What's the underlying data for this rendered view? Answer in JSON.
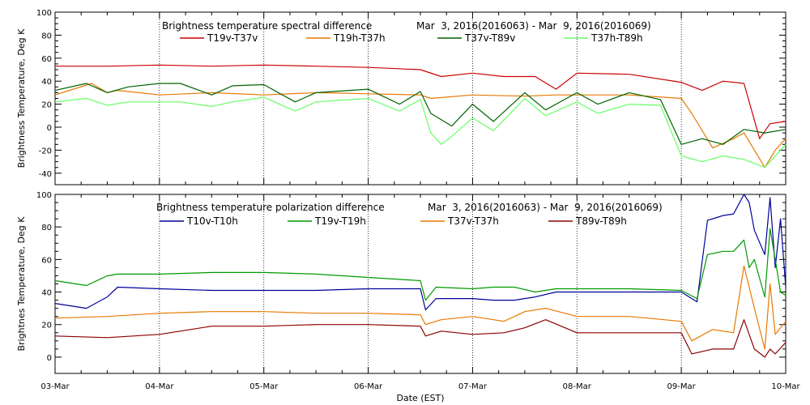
{
  "chart_data": [
    {
      "type": "line",
      "title": "Brightness temperature spectral difference",
      "date_range_text": "Mar  3, 2016(2016063) - Mar  9, 2016(2016069)",
      "ylabel": "Brightness Temperature, Deg K",
      "xlabel": "",
      "ylim": [
        -50,
        100
      ],
      "yticks": [
        -40,
        -20,
        0,
        20,
        40,
        60,
        80,
        100
      ],
      "xlim": [
        0,
        7
      ],
      "grid": "vertical dotted lines at day boundaries",
      "legend_position": "top",
      "series": [
        {
          "name": "T19v-T37v",
          "color": "#cc0000",
          "x": [
            0,
            0.5,
            1,
            1.5,
            2,
            2.5,
            3,
            3.5,
            3.7,
            4,
            4.3,
            4.6,
            4.8,
            5,
            5.5,
            6,
            6.2,
            6.4,
            6.6,
            6.75,
            6.85,
            7
          ],
          "y": [
            53,
            53,
            54,
            53,
            54,
            53,
            52,
            50,
            44,
            47,
            44,
            44,
            33,
            47,
            46,
            39,
            32,
            40,
            38,
            -10,
            3,
            5
          ]
        },
        {
          "name": "T19h-T37h",
          "color": "#e87800",
          "x": [
            0,
            0.35,
            0.5,
            0.6,
            1,
            1.5,
            2,
            2.5,
            3,
            3.5,
            3.6,
            4,
            4.5,
            4.8,
            5,
            5.5,
            6,
            6.1,
            6.3,
            6.5,
            6.6,
            6.8,
            6.9,
            7
          ],
          "y": [
            28,
            38,
            30,
            32,
            28,
            30,
            28,
            30,
            29,
            28,
            25,
            28,
            27,
            28,
            28,
            28,
            25,
            12,
            -18,
            -10,
            -5,
            -35,
            -20,
            -10
          ]
        },
        {
          "name": "T37v-T89v",
          "color": "#006400",
          "x": [
            0,
            0.3,
            0.5,
            0.7,
            1,
            1.2,
            1.5,
            1.7,
            2,
            2.3,
            2.5,
            3,
            3.3,
            3.5,
            3.6,
            3.8,
            4,
            4.2,
            4.5,
            4.7,
            5,
            5.2,
            5.5,
            5.8,
            6,
            6.2,
            6.4,
            6.6,
            6.8,
            7
          ],
          "y": [
            32,
            38,
            30,
            35,
            38,
            38,
            28,
            36,
            37,
            22,
            30,
            33,
            20,
            31,
            12,
            1,
            20,
            5,
            30,
            15,
            30,
            20,
            30,
            24,
            -15,
            -10,
            -15,
            -2,
            -5,
            -2
          ]
        },
        {
          "name": "T37h-T89h",
          "color": "#66ff66",
          "x": [
            0,
            0.3,
            0.5,
            0.7,
            1,
            1.2,
            1.5,
            1.7,
            2,
            2.3,
            2.5,
            3,
            3.3,
            3.5,
            3.6,
            3.7,
            3.8,
            4,
            4.2,
            4.5,
            4.7,
            5,
            5.2,
            5.5,
            5.8,
            6,
            6.2,
            6.4,
            6.6,
            6.8,
            7
          ],
          "y": [
            22,
            25,
            19,
            22,
            22,
            22,
            18,
            22,
            26,
            14,
            22,
            25,
            14,
            24,
            -5,
            -15,
            -8,
            8,
            -3,
            25,
            10,
            22,
            12,
            20,
            19,
            -25,
            -30,
            -25,
            -28,
            -35,
            -15
          ]
        }
      ]
    },
    {
      "type": "line",
      "title": "Brightness temperature polarization difference",
      "date_range_text": "Mar  3, 2016(2016063) - Mar  9, 2016(2016069)",
      "ylabel": "Brightnes Temperature, Deg K",
      "xlabel": "Date (EST)",
      "ylim": [
        -10,
        100
      ],
      "yticks": [
        0,
        20,
        40,
        60,
        80,
        100
      ],
      "xlim": [
        0,
        7
      ],
      "xticks": [
        "03-Mar",
        "04-Mar",
        "05-Mar",
        "06-Mar",
        "07-Mar",
        "08-Mar",
        "09-Mar",
        "10-Mar"
      ],
      "grid": "vertical dotted lines at day boundaries",
      "legend_position": "top",
      "series": [
        {
          "name": "T10v-T10h",
          "color": "#000099",
          "x": [
            0,
            0.3,
            0.5,
            0.6,
            1,
            1.5,
            2,
            2.5,
            3,
            3.5,
            3.55,
            3.65,
            4,
            4.2,
            4.4,
            4.6,
            4.8,
            5,
            5.5,
            6,
            6.15,
            6.25,
            6.4,
            6.5,
            6.6,
            6.65,
            6.7,
            6.8,
            6.85,
            6.9,
            6.95,
            7
          ],
          "y": [
            33,
            30,
            37,
            43,
            42,
            41,
            41,
            41,
            42,
            42,
            29,
            36,
            36,
            35,
            35,
            37,
            40,
            40,
            40,
            40,
            34,
            84,
            87,
            88,
            100,
            95,
            78,
            63,
            98,
            55,
            85,
            43
          ]
        },
        {
          "name": "T19v-T19h",
          "color": "#009900",
          "x": [
            0,
            0.3,
            0.5,
            0.6,
            1,
            1.5,
            2,
            2.5,
            3,
            3.5,
            3.55,
            3.65,
            4,
            4.2,
            4.4,
            4.6,
            4.8,
            5,
            5.5,
            6,
            6.15,
            6.25,
            6.4,
            6.5,
            6.6,
            6.65,
            6.7,
            6.8,
            6.85,
            6.9,
            6.95,
            7
          ],
          "y": [
            47,
            44,
            50,
            51,
            51,
            52,
            52,
            51,
            49,
            47,
            35,
            43,
            42,
            43,
            43,
            40,
            42,
            42,
            42,
            41,
            36,
            63,
            65,
            65,
            72,
            55,
            60,
            37,
            79,
            60,
            40,
            38
          ]
        },
        {
          "name": "T37v-T37h",
          "color": "#e87800",
          "x": [
            0,
            0.5,
            1,
            1.5,
            2,
            2.5,
            3,
            3.5,
            3.55,
            3.7,
            4,
            4.3,
            4.5,
            4.7,
            5,
            5.5,
            6,
            6.1,
            6.3,
            6.5,
            6.6,
            6.7,
            6.8,
            6.85,
            6.9,
            7
          ],
          "y": [
            24,
            25,
            27,
            28,
            28,
            27,
            27,
            26,
            20,
            23,
            25,
            22,
            28,
            30,
            25,
            25,
            22,
            10,
            17,
            15,
            56,
            30,
            5,
            45,
            14,
            22
          ]
        },
        {
          "name": "T89v-T89h",
          "color": "#8b0000",
          "x": [
            0,
            0.5,
            1,
            1.5,
            2,
            2.5,
            3,
            3.5,
            3.55,
            3.7,
            4,
            4.3,
            4.5,
            4.7,
            5,
            5.5,
            6,
            6.1,
            6.3,
            6.5,
            6.6,
            6.7,
            6.8,
            6.85,
            6.9,
            7
          ],
          "y": [
            13,
            12,
            14,
            19,
            19,
            20,
            20,
            19,
            13,
            16,
            14,
            15,
            18,
            23,
            15,
            15,
            15,
            2,
            5,
            5,
            23,
            5,
            0,
            5,
            2,
            9
          ]
        }
      ]
    }
  ]
}
